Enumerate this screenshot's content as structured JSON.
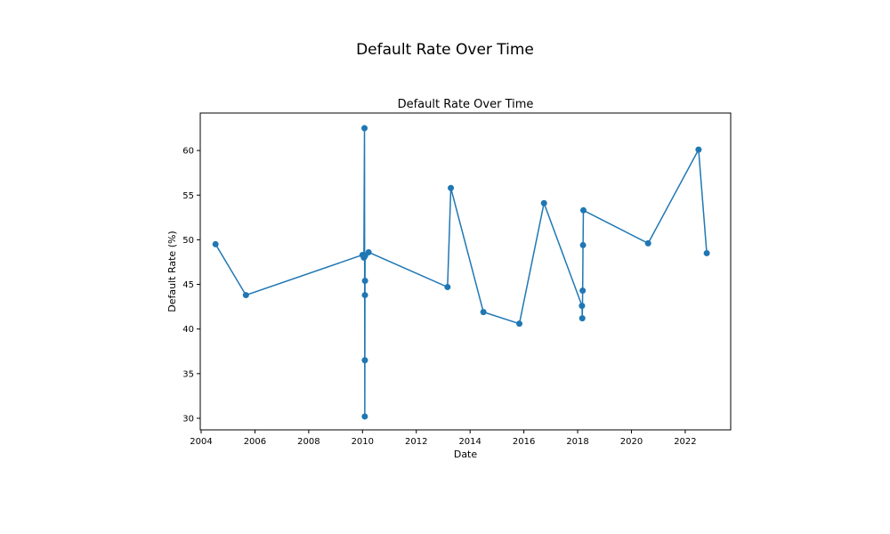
{
  "figure": {
    "suptitle": "Default Rate Over Time"
  },
  "colors": {
    "series": "#1f77b4",
    "axis": "#000000",
    "background": "#ffffff"
  },
  "chart_data": {
    "type": "line",
    "title": "Default Rate Over Time",
    "xlabel": "Date",
    "ylabel": "Default Rate (%)",
    "markers": true,
    "grid": false,
    "xlim": [
      "2003-12-20",
      "2023-09-10"
    ],
    "ylim": [
      28.7,
      64.2
    ],
    "xticks": [
      "2004",
      "2006",
      "2008",
      "2010",
      "2012",
      "2014",
      "2016",
      "2018",
      "2020",
      "2022"
    ],
    "yticks": [
      "30",
      "35",
      "40",
      "45",
      "50",
      "55",
      "60"
    ],
    "series": [
      {
        "points": [
          {
            "x": "2004-07-15",
            "y": 49.5
          },
          {
            "x": "2005-09-01",
            "y": 43.8
          },
          {
            "x": "2010-01-01",
            "y": 48.3
          },
          {
            "x": "2010-01-20",
            "y": 48.0
          },
          {
            "x": "2010-01-28",
            "y": 62.5
          },
          {
            "x": "2010-02-01",
            "y": 30.2
          },
          {
            "x": "2010-02-02",
            "y": 36.5
          },
          {
            "x": "2010-02-03",
            "y": 43.8
          },
          {
            "x": "2010-02-04",
            "y": 45.4
          },
          {
            "x": "2010-02-05",
            "y": 48.2
          },
          {
            "x": "2010-03-25",
            "y": 48.6
          },
          {
            "x": "2013-03-01",
            "y": 44.7
          },
          {
            "x": "2013-04-15",
            "y": 55.8
          },
          {
            "x": "2014-07-01",
            "y": 41.9
          },
          {
            "x": "2015-11-01",
            "y": 40.6
          },
          {
            "x": "2016-10-01",
            "y": 54.1
          },
          {
            "x": "2018-03-01",
            "y": 42.6
          },
          {
            "x": "2018-03-05",
            "y": 41.2
          },
          {
            "x": "2018-03-10",
            "y": 44.3
          },
          {
            "x": "2018-03-15",
            "y": 49.4
          },
          {
            "x": "2018-03-20",
            "y": 53.3
          },
          {
            "x": "2020-08-15",
            "y": 49.6
          },
          {
            "x": "2022-07-01",
            "y": 60.1
          },
          {
            "x": "2022-10-20",
            "y": 48.5
          }
        ]
      }
    ]
  }
}
